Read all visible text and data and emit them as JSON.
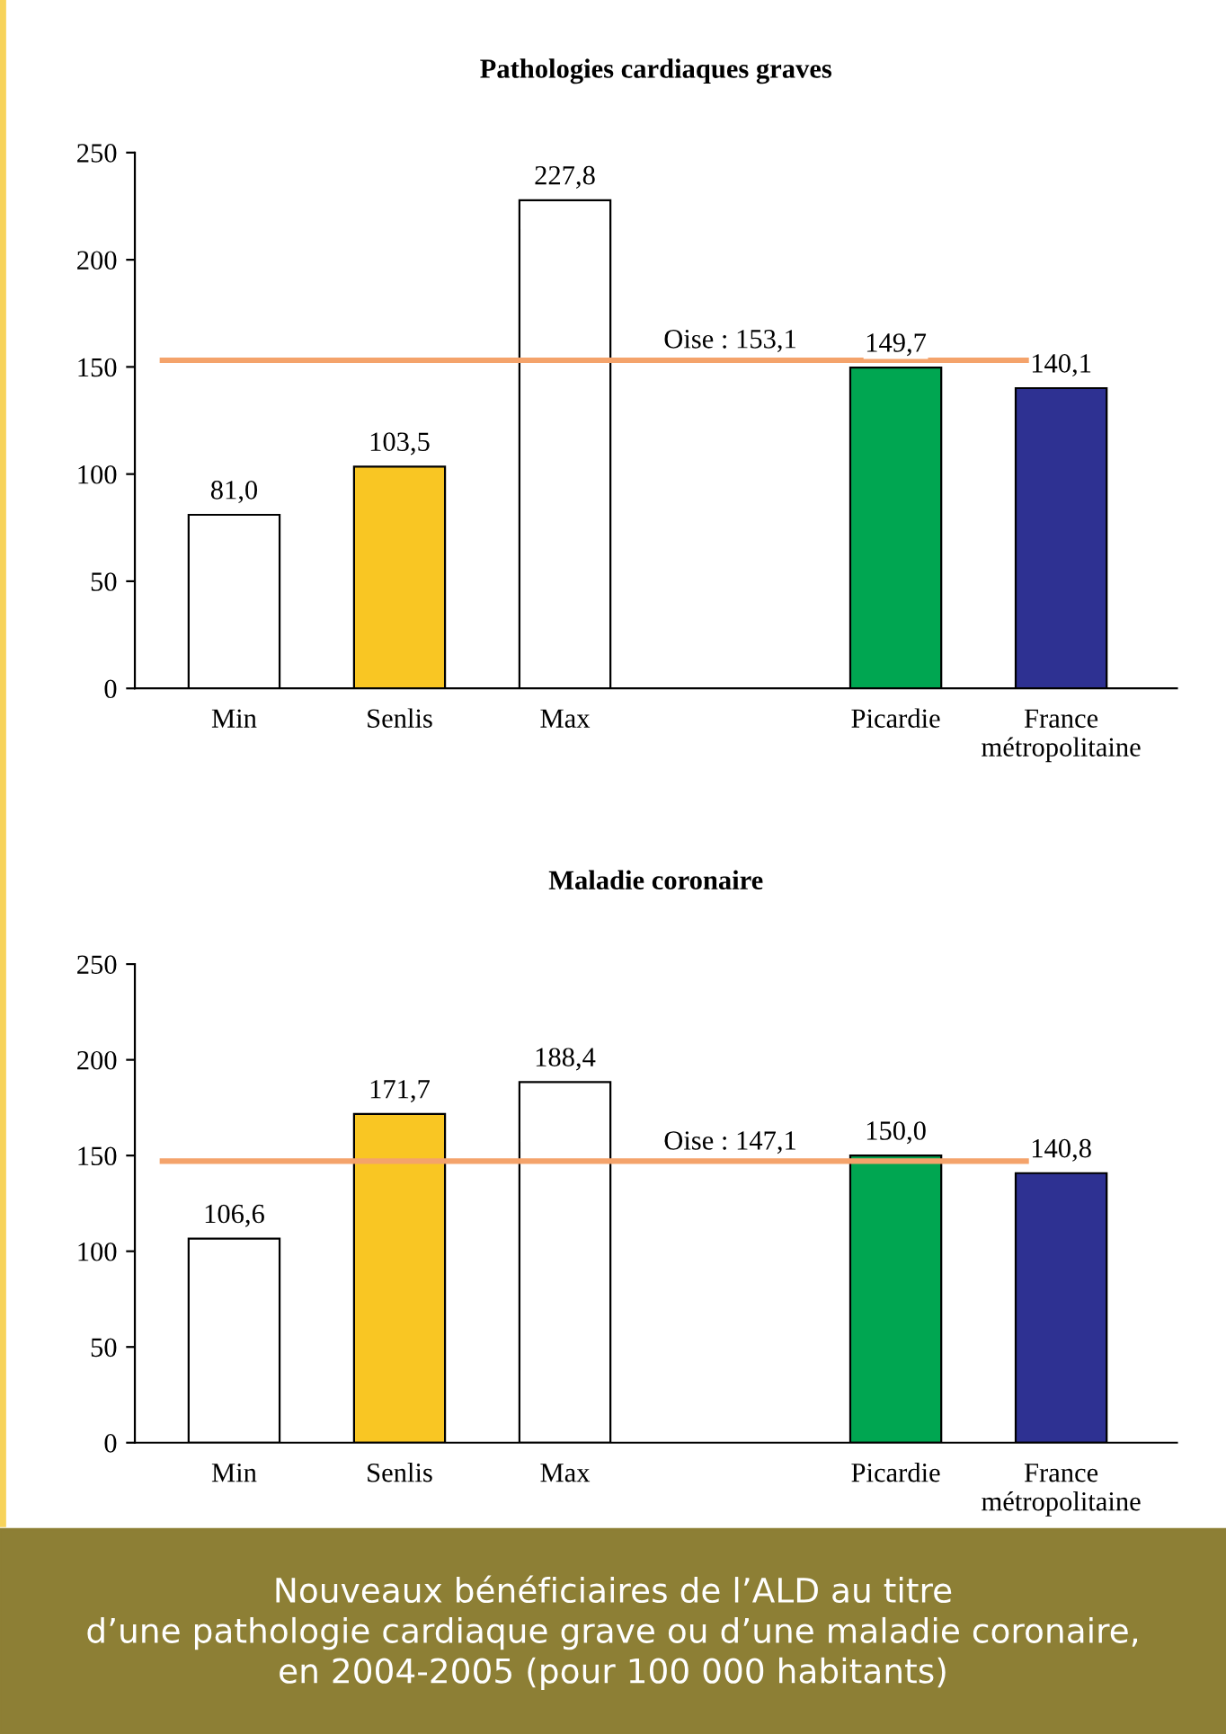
{
  "chart_data": [
    {
      "type": "bar",
      "title": "Pathologies cardiaques graves",
      "categories": [
        "Min",
        "Senlis",
        "Max",
        null,
        "Picardie",
        "France\nmétropolitaine"
      ],
      "values": [
        81.0,
        103.5,
        227.8,
        null,
        149.7,
        140.1
      ],
      "colors": [
        "#ffffff",
        "#f9c623",
        "#ffffff",
        null,
        "#00a651",
        "#2e3192"
      ],
      "value_labels": [
        "81,0",
        "103,5",
        "227,8",
        null,
        "149,7",
        "140,1"
      ],
      "ylim": [
        0,
        250
      ],
      "yticks": [
        0,
        50,
        100,
        150,
        200,
        250
      ],
      "grid": false,
      "ref_lines": [
        {
          "axis": "y",
          "value": 153.1,
          "label": "Oise : 153,1",
          "color": "#f4a36b"
        }
      ]
    },
    {
      "type": "bar",
      "title": "Maladie coronaire",
      "categories": [
        "Min",
        "Senlis",
        "Max",
        null,
        "Picardie",
        "France\nmétropolitaine"
      ],
      "values": [
        106.6,
        171.7,
        188.4,
        null,
        150.0,
        140.8
      ],
      "colors": [
        "#ffffff",
        "#f9c623",
        "#ffffff",
        null,
        "#00a651",
        "#2e3192"
      ],
      "value_labels": [
        "106,6",
        "171,7",
        "188,4",
        null,
        "150,0",
        "140,8"
      ],
      "ylim": [
        0,
        250
      ],
      "yticks": [
        0,
        50,
        100,
        150,
        200,
        250
      ],
      "grid": false,
      "ref_lines": [
        {
          "axis": "y",
          "value": 147.1,
          "label": "Oise : 147,1",
          "color": "#f4a36b"
        }
      ],
      "annotations": [
        "Nouveaux bénéficiaires de l’ALD au titre\nd’une pathologie cardiaque grave ou d’une maladie coronaire,\nen 2004-2005 (pour 100 000 habitants)"
      ]
    }
  ]
}
